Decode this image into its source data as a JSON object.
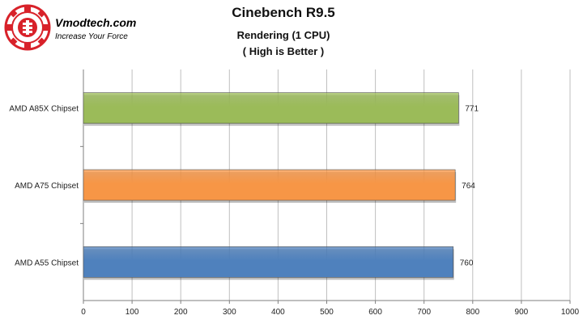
{
  "logo": {
    "name": "Vmodtech.com",
    "tagline": "Increase Your Force",
    "colors": {
      "red": "#d8222a",
      "text": "#000000"
    }
  },
  "chart_data": {
    "type": "bar",
    "orientation": "horizontal",
    "title": "Cinebench R9.5",
    "subtitle": "Rendering  (1 CPU)",
    "note": "( High is Better )",
    "categories": [
      "AMD A85X Chipset",
      "AMD A75 Chipset",
      "AMD A55 Chipset"
    ],
    "values": [
      771,
      764,
      760
    ],
    "colors": [
      "#9bbb59",
      "#f79646",
      "#4f81bd"
    ],
    "xlim": [
      0,
      1000
    ],
    "xticks": [
      0,
      100,
      200,
      300,
      400,
      500,
      600,
      700,
      800,
      900,
      1000
    ],
    "grid": true,
    "legend": "none"
  }
}
